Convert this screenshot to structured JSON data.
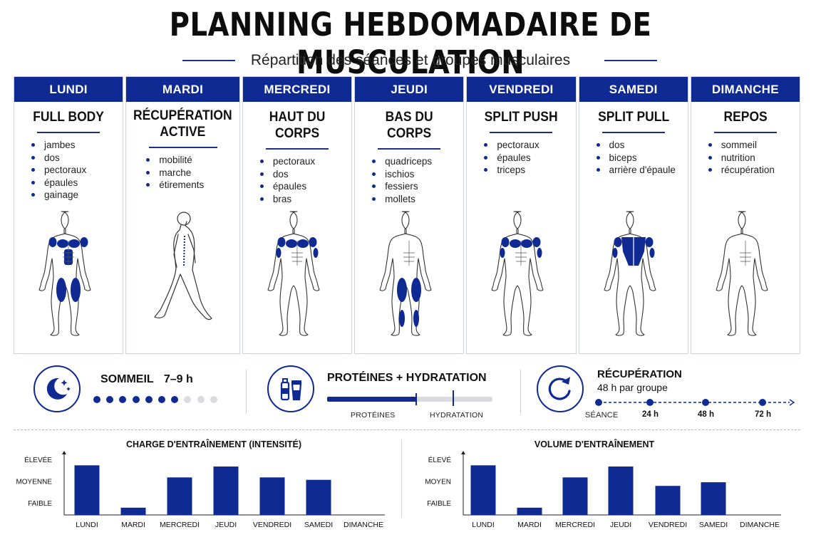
{
  "header": {
    "title": "PLANNING HEBDOMADAIRE DE MUSCULATION",
    "subtitle": "Répartition des séances et groupes musculaires"
  },
  "days": [
    {
      "day": "LUNDI",
      "session": "FULL BODY",
      "items": [
        "jambes",
        "dos",
        "pectoraux",
        "épaules",
        "gainage"
      ]
    },
    {
      "day": "MARDI",
      "session": "RÉCUPÉRATION ACTIVE",
      "items": [
        "mobilité",
        "marche",
        "étirements"
      ]
    },
    {
      "day": "MERCREDI",
      "session": "HAUT DU CORPS",
      "items": [
        "pectoraux",
        "dos",
        "épaules",
        "bras"
      ]
    },
    {
      "day": "JEUDI",
      "session": "BAS DU CORPS",
      "items": [
        "quadriceps",
        "ischios",
        "fessiers",
        "mollets"
      ]
    },
    {
      "day": "VENDREDI",
      "session": "SPLIT PUSH",
      "items": [
        "pectoraux",
        "épaules",
        "triceps"
      ]
    },
    {
      "day": "SAMEDI",
      "session": "SPLIT PULL",
      "items": [
        "dos",
        "biceps",
        "arrière d'épaule"
      ]
    },
    {
      "day": "DIMANCHE",
      "session": "REPOS",
      "items": [
        "sommeil",
        "nutrition",
        "récupération"
      ]
    }
  ],
  "info": {
    "sleep": {
      "label": "SOMMEIL",
      "range": "7–9 h",
      "filled_dots": 7,
      "total_dots": 10
    },
    "protein": {
      "label": "PROTÉINES + HYDRATATION",
      "bar_left_label": "PROTÉINES",
      "bar_right_label": "HYDRATATION",
      "protein_fraction": 0.54
    },
    "recovery": {
      "label": "RÉCUPÉRATION",
      "sub": "48 h par groupe",
      "timeline": [
        "SÉANCE",
        "24 h",
        "48 h",
        "72 h"
      ]
    }
  },
  "colors": {
    "accent": "#0f2a92",
    "muted": "#d9dbe0"
  },
  "chart_data": [
    {
      "type": "bar",
      "title": "CHARGE D'ENTRAÎNEMENT (INTENSITÉ)",
      "categories": [
        "LUNDI",
        "MARDI",
        "MERCREDI",
        "JEUDI",
        "VENDREDI",
        "SAMEDI",
        "DIMANCHE"
      ],
      "values": [
        2.05,
        0.3,
        1.55,
        2.0,
        1.55,
        1.45,
        0
      ],
      "ytick_labels": [
        "FAIBLE",
        "MOYENNE",
        "ÉLEVÉE"
      ],
      "ytick_values": [
        0.5,
        1.4,
        2.3
      ],
      "ylim": [
        0,
        2.5
      ]
    },
    {
      "type": "bar",
      "title": "VOLUME D'ENTRAÎNEMENT",
      "categories": [
        "LUNDI",
        "MARDI",
        "MERCREDI",
        "JEUDI",
        "VENDREDI",
        "SAMEDI",
        "DIMANCHE"
      ],
      "values": [
        2.05,
        0.3,
        1.55,
        2.0,
        1.2,
        1.35,
        0
      ],
      "ytick_labels": [
        "FAIBLE",
        "MOYEN",
        "ÉLEVÉ"
      ],
      "ytick_values": [
        0.5,
        1.4,
        2.3
      ],
      "ylim": [
        0,
        2.5
      ]
    }
  ]
}
